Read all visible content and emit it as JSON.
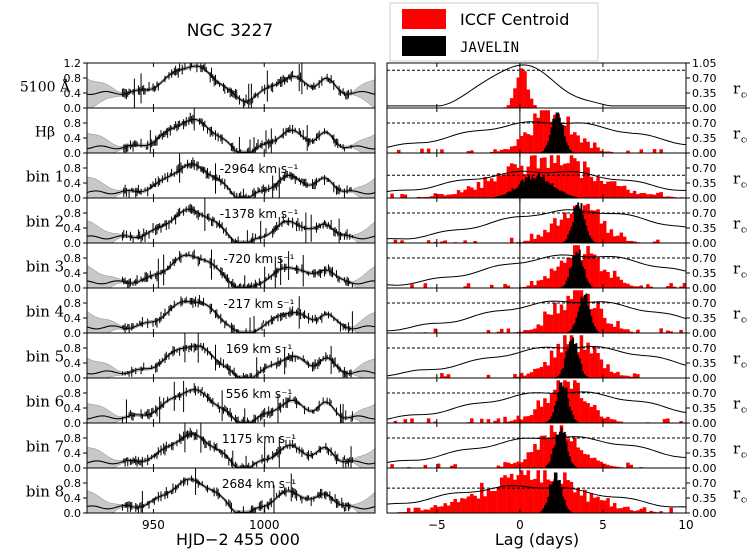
{
  "title": "NGC 3227",
  "legend": [
    {
      "label": "ICCF Centroid",
      "color": "#ff0000"
    },
    {
      "label": "JAVELIN",
      "color": "#000000"
    }
  ],
  "left_xlabel": "HJD−2 455 000",
  "right_xlabel": "Lag (days)",
  "rcc_label": "r_cc",
  "chart_data": {
    "type": "line",
    "left_panels": {
      "xlim": [
        920,
        1050
      ],
      "ylim": [
        0,
        1.2
      ],
      "xticks": [
        950,
        1000
      ],
      "xticklabels": [
        "950",
        "1000"
      ],
      "yticks": [
        0.0,
        0.4,
        0.8
      ],
      "first_panel_yticks": [
        0.0,
        0.4,
        0.8,
        1.2
      ]
    },
    "right_panels": {
      "xlim": [
        -8,
        10
      ],
      "xticks": [
        -5,
        0,
        5,
        10
      ],
      "xticklabels": [
        "−5",
        "0",
        "5",
        "10"
      ],
      "rcc_ticks": [
        0.0,
        0.35,
        0.7
      ],
      "first_panel_rcc_ticks": [
        0.0,
        0.35,
        0.7,
        1.05
      ]
    },
    "panels": [
      {
        "label": "5100 Å",
        "velocity": "",
        "iccf_peak": 0.0,
        "javelin_peak": 0.0,
        "rcc_peak": 1.0,
        "dashed": 0.88
      },
      {
        "label": "Hβ",
        "velocity": "",
        "iccf_peak": 1.8,
        "javelin_peak": 2.2,
        "rcc_peak": 0.72,
        "dashed": 0.7
      },
      {
        "label": "bin 1",
        "velocity": "-2964 km s⁻¹",
        "iccf_peak": 1.5,
        "javelin_peak": 0.9,
        "rcc_peak": 0.62,
        "dashed": 0.53
      },
      {
        "label": "bin 2",
        "velocity": "-1378 km s⁻¹",
        "iccf_peak": 3.4,
        "javelin_peak": 3.5,
        "rcc_peak": 0.75,
        "dashed": 0.7
      },
      {
        "label": "bin 3",
        "velocity": "-720 km s⁻¹",
        "iccf_peak": 3.6,
        "javelin_peak": 3.4,
        "rcc_peak": 0.76,
        "dashed": 0.7
      },
      {
        "label": "bin 4",
        "velocity": "-217 km s⁻¹",
        "iccf_peak": 3.3,
        "javelin_peak": 3.8,
        "rcc_peak": 0.74,
        "dashed": 0.7
      },
      {
        "label": "bin 5",
        "velocity": "169 km s⁻¹",
        "iccf_peak": 3.2,
        "javelin_peak": 3.1,
        "rcc_peak": 0.73,
        "dashed": 0.7
      },
      {
        "label": "bin 6",
        "velocity": "556 km s⁻¹",
        "iccf_peak": 2.6,
        "javelin_peak": 2.5,
        "rcc_peak": 0.72,
        "dashed": 0.7
      },
      {
        "label": "bin 7",
        "velocity": "1175 km s⁻¹",
        "iccf_peak": 2.3,
        "javelin_peak": 2.4,
        "rcc_peak": 0.72,
        "dashed": 0.7
      },
      {
        "label": "bin 8",
        "velocity": "2684 km s⁻¹",
        "iccf_peak": 0.4,
        "javelin_peak": 2.1,
        "rcc_peak": 0.62,
        "dashed": 0.58
      }
    ]
  }
}
